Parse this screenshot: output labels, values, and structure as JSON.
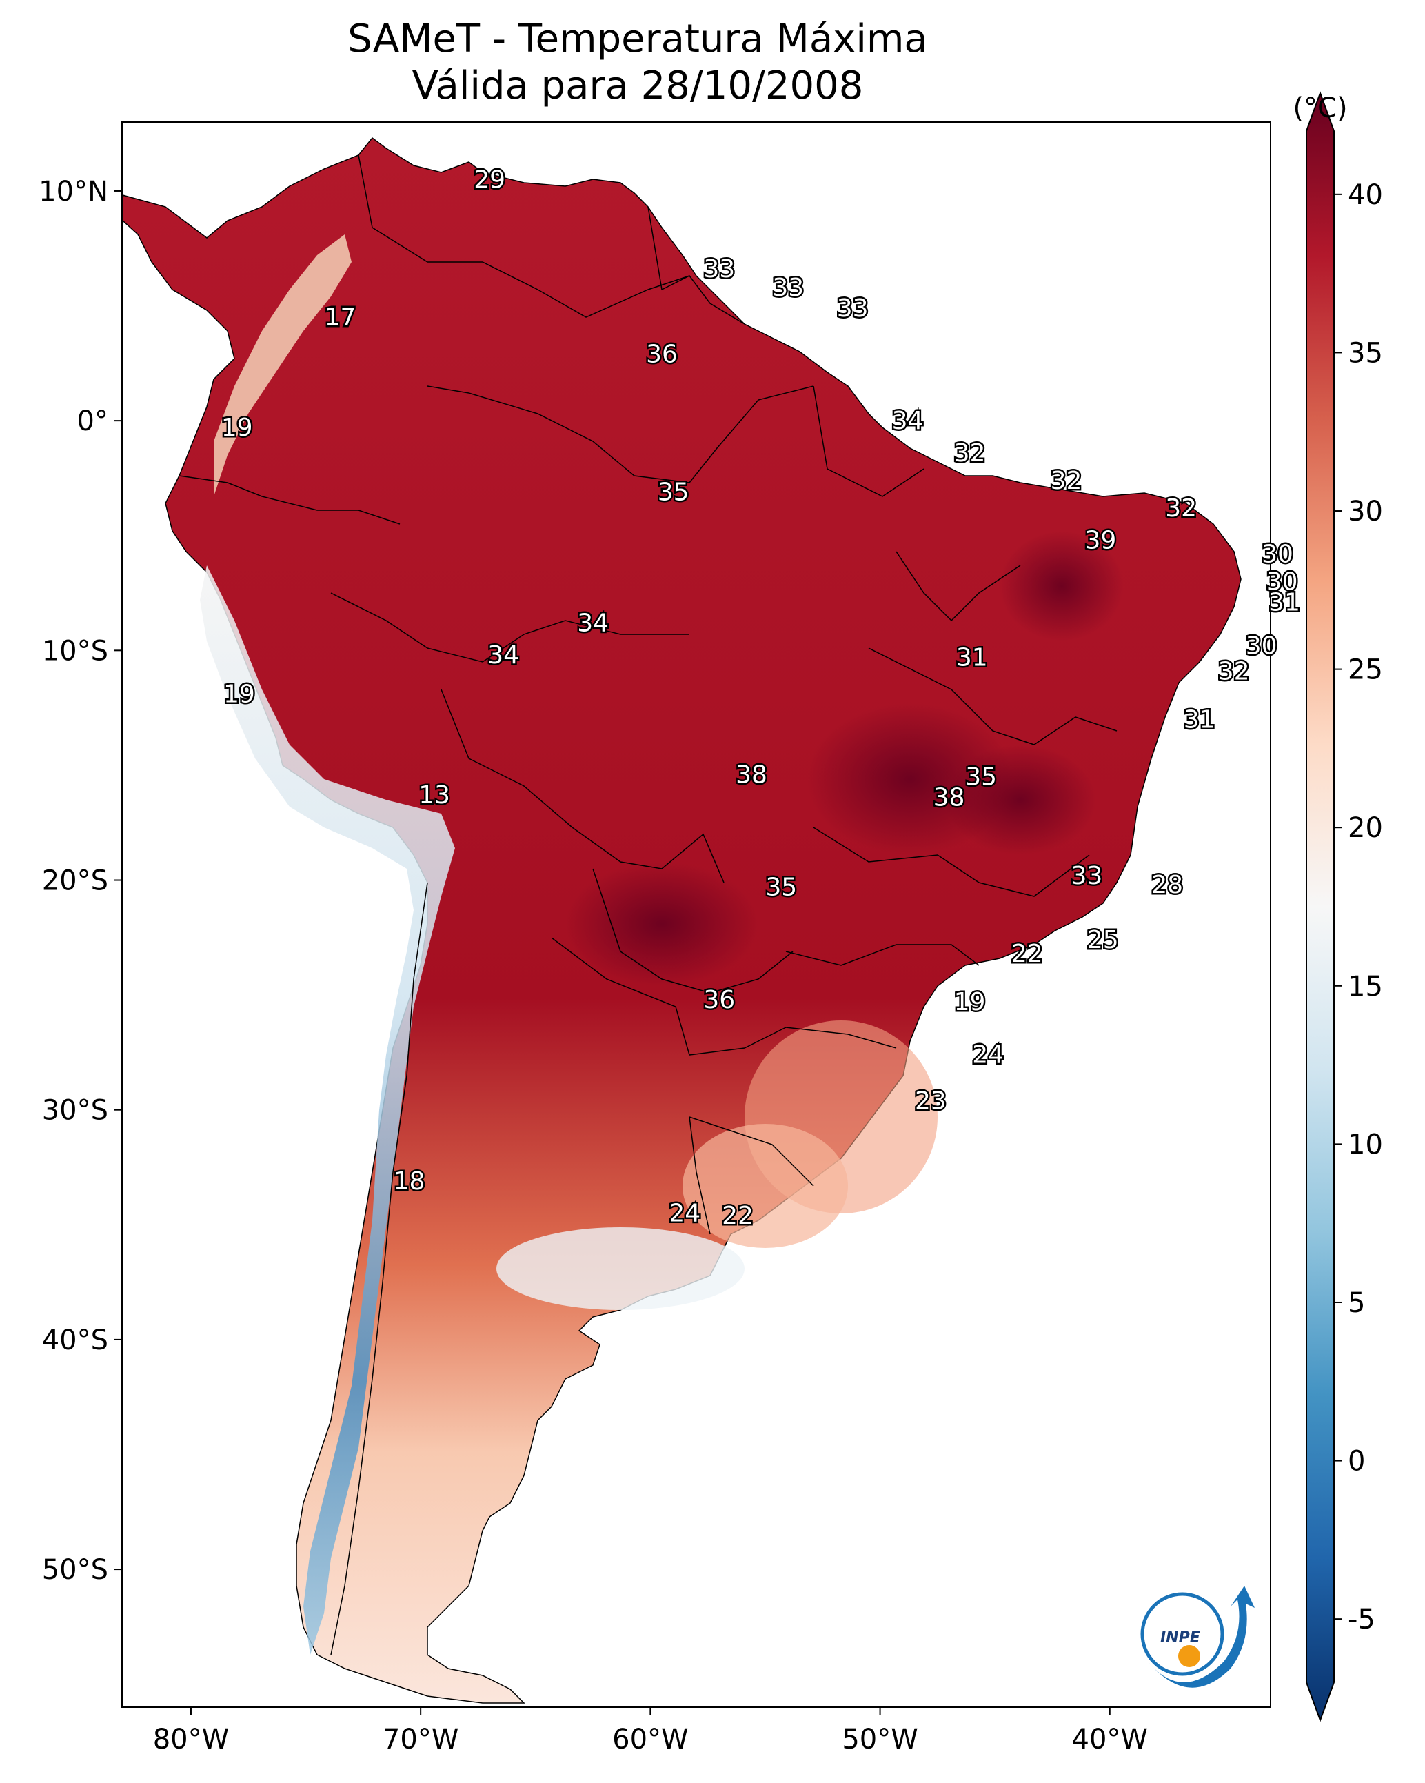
{
  "title": "SAMeT - Temperatura Máxima",
  "subtitle": "Válida para 28/10/2008",
  "colorbar": {
    "unit": "(°C)",
    "min": -7,
    "max": 42,
    "ticks": [
      "-5",
      "0",
      "5",
      "10",
      "15",
      "20",
      "25",
      "30",
      "35",
      "40"
    ],
    "colors": [
      "#08306b",
      "#2166ac",
      "#4393c3",
      "#92c5de",
      "#d1e5f0",
      "#f7f7f7",
      "#fddbc7",
      "#f4a582",
      "#d6604d",
      "#b2182b",
      "#67001f"
    ]
  },
  "axes": {
    "lon_labels": [
      "80°W",
      "70°W",
      "60°W",
      "50°W",
      "40°W"
    ],
    "lat_labels": [
      "10°N",
      "0°",
      "10°S",
      "20°S",
      "30°S",
      "40°S",
      "50°S"
    ]
  },
  "station_values": [
    {
      "text": "29",
      "lon": -67,
      "lat": 10.5
    },
    {
      "text": "17",
      "lon": -73.5,
      "lat": 4.5
    },
    {
      "text": "33",
      "lon": -57,
      "lat": 6.6
    },
    {
      "text": "33",
      "lon": -54,
      "lat": 5.8
    },
    {
      "text": "33",
      "lon": -51.2,
      "lat": 4.9
    },
    {
      "text": "36",
      "lon": -59.5,
      "lat": 2.9
    },
    {
      "text": "19",
      "lon": -78,
      "lat": -0.3
    },
    {
      "text": "34",
      "lon": -48.8,
      "lat": 0
    },
    {
      "text": "32",
      "lon": -46.1,
      "lat": -1.4
    },
    {
      "text": "35",
      "lon": -59,
      "lat": -3.1
    },
    {
      "text": "32",
      "lon": -41.9,
      "lat": -2.6
    },
    {
      "text": "32",
      "lon": -36.9,
      "lat": -3.8
    },
    {
      "text": "39",
      "lon": -40.4,
      "lat": -5.2
    },
    {
      "text": "30",
      "lon": -32.7,
      "lat": -5.8
    },
    {
      "text": "30",
      "lon": -32.5,
      "lat": -7
    },
    {
      "text": "31",
      "lon": -32.4,
      "lat": -7.9
    },
    {
      "text": "34",
      "lon": -62.5,
      "lat": -8.8
    },
    {
      "text": "34",
      "lon": -66.4,
      "lat": -10.2
    },
    {
      "text": "31",
      "lon": -46,
      "lat": -10.3
    },
    {
      "text": "30",
      "lon": -33.4,
      "lat": -9.8
    },
    {
      "text": "32",
      "lon": -34.6,
      "lat": -10.9
    },
    {
      "text": "19",
      "lon": -77.9,
      "lat": -11.9
    },
    {
      "text": "31",
      "lon": -36.1,
      "lat": -13
    },
    {
      "text": "13",
      "lon": -69.4,
      "lat": -16.3
    },
    {
      "text": "38",
      "lon": -55.6,
      "lat": -15.4
    },
    {
      "text": "35",
      "lon": -45.6,
      "lat": -15.5
    },
    {
      "text": "38",
      "lon": -47,
      "lat": -16.4
    },
    {
      "text": "33",
      "lon": -41,
      "lat": -19.8
    },
    {
      "text": "28",
      "lon": -37.5,
      "lat": -20.2
    },
    {
      "text": "35",
      "lon": -54.3,
      "lat": -20.3
    },
    {
      "text": "25",
      "lon": -40.3,
      "lat": -22.6
    },
    {
      "text": "22",
      "lon": -43.6,
      "lat": -23.2
    },
    {
      "text": "36",
      "lon": -57,
      "lat": -25.2
    },
    {
      "text": "19",
      "lon": -46.1,
      "lat": -25.3
    },
    {
      "text": "24",
      "lon": -45.3,
      "lat": -27.6
    },
    {
      "text": "23",
      "lon": -47.8,
      "lat": -29.6
    },
    {
      "text": "18",
      "lon": -70.5,
      "lat": -33.1
    },
    {
      "text": "24",
      "lon": -58.5,
      "lat": -34.5
    },
    {
      "text": "22",
      "lon": -56.2,
      "lat": -34.6
    }
  ],
  "logo": {
    "text": "INPE"
  }
}
